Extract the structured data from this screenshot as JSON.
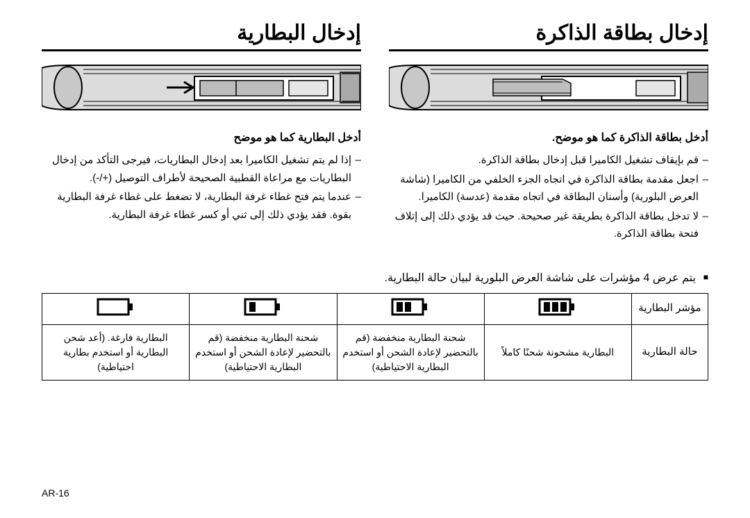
{
  "right": {
    "title": "إدخال البطارية",
    "intro": "أدخل البطارية كما هو موضح",
    "notes": [
      "إذا لم يتم تشغيل الكاميرا بعد إدخال البطاريات، فيرجى التأكد من إدخال البطاريات مع مراعاة القطبية الصحيحة لأطراف التوصيل (+/-).",
      "عندما يتم فتح غطاء غرفة البطارية، لا تضغط على غطاء غرفة البطارية بقوة. فقد يؤدي ذلك إلى ثني أو كسر غطاء غرفة البطارية."
    ]
  },
  "left": {
    "title": "إدخال بطاقة الذاكرة",
    "intro": "أدخل بطاقة الذاكرة كما هو موضح.",
    "notes": [
      "قم بإيقاف تشغيل الكاميرا قبل إدخال بطاقة الذاكرة.",
      "اجعل مقدمة بطاقة الذاكرة في اتجاه الجزء الخلفي من الكاميرا (شاشة العرض البلورية) وأسنان البطاقة في اتجاه مقدمة (عدسة) الكاميرا.",
      "لا تدخل بطاقة الذاكرة بطريقة غير صحيحة. حيث قد يؤدي ذلك إلى إتلاف فتحة بطاقة الذاكرة."
    ]
  },
  "indicator_note": "يتم عرض 4 مؤشرات على شاشة العرض البلورية لبيان حالة البطارية.",
  "table": {
    "row1_label": "مؤشر البطارية",
    "row2_label": "حالة البطارية",
    "states": [
      "البطارية مشحونة شحنًا كاملاً",
      "شحنة البطارية منخفضة (قم بالتحضير لإعادة الشحن أو استخدم البطارية الاحتياطية)",
      "شحنة البطارية منخفضة (قم بالتحضير لإعادة الشحن أو استخدم البطارية الاحتياطية)",
      "البطارية فارغة. (أعد شحن البطارية أو استخدم بطارية احتياطية)"
    ],
    "levels": [
      3,
      2,
      1,
      0
    ]
  },
  "page_number": "AR-16"
}
